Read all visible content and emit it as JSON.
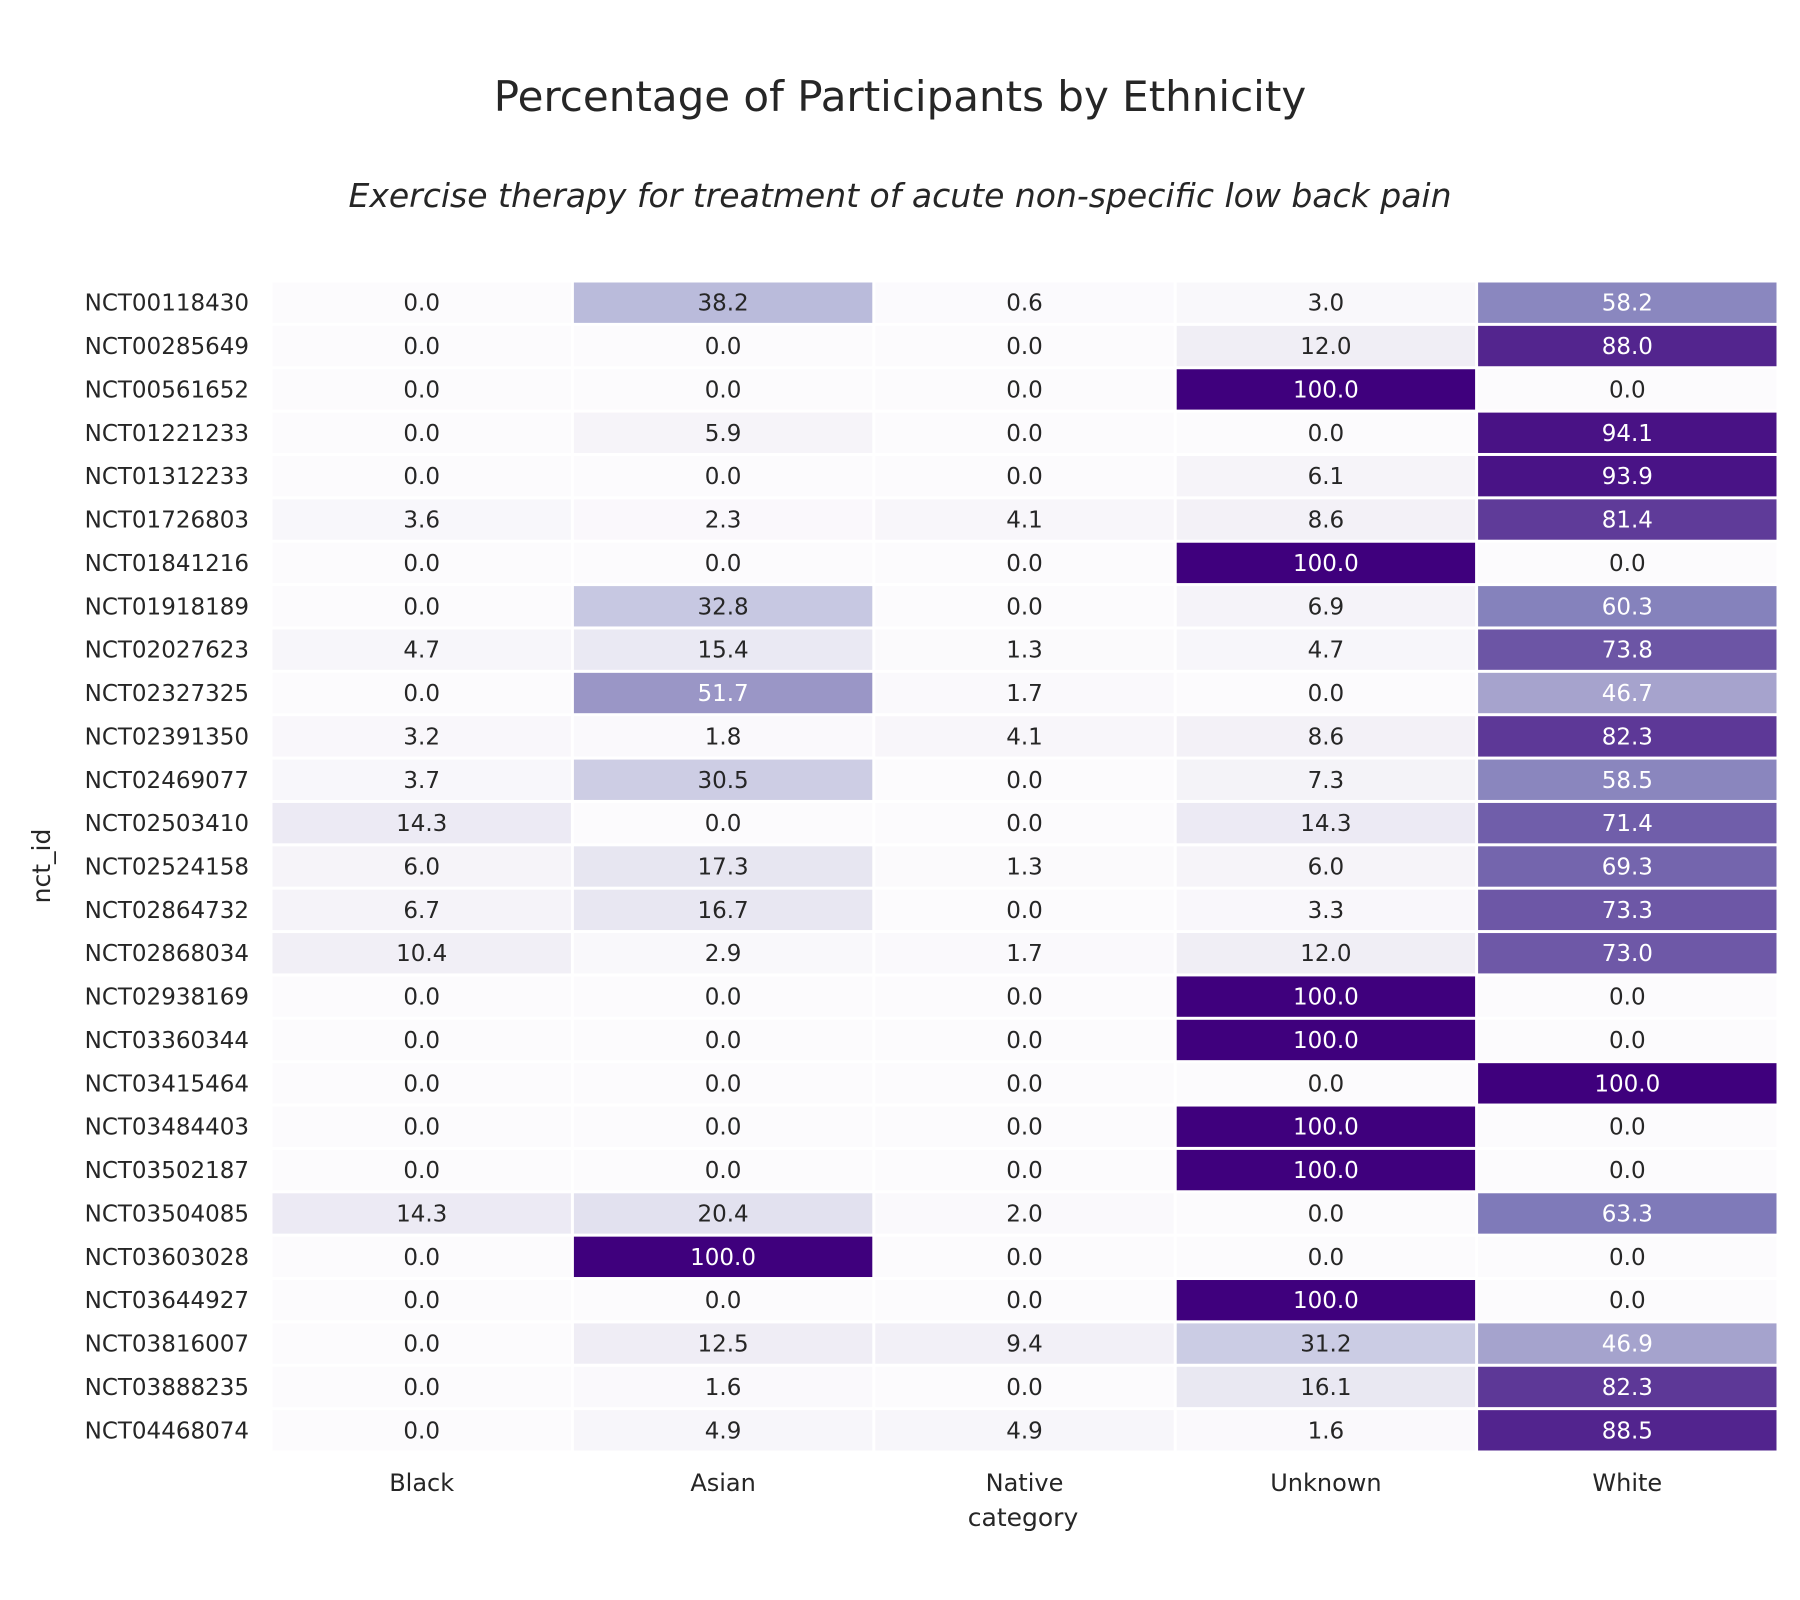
{
  "title": "Percentage of Participants by Ethnicity",
  "subtitle": "Exercise therapy for treatment of acute non-specific low back pain",
  "chart_data": {
    "type": "heatmap",
    "colormap": "Purples",
    "vmin": 0,
    "vmax": 100,
    "xlabel": "category",
    "ylabel": "nct_id",
    "columns": [
      "Black",
      "Asian",
      "Native",
      "Unknown",
      "White"
    ],
    "rows": [
      {
        "id": "NCT00118430",
        "values": [
          0.0,
          38.2,
          0.6,
          3.0,
          58.2
        ]
      },
      {
        "id": "NCT00285649",
        "values": [
          0.0,
          0.0,
          0.0,
          12.0,
          88.0
        ]
      },
      {
        "id": "NCT00561652",
        "values": [
          0.0,
          0.0,
          0.0,
          100.0,
          0.0
        ]
      },
      {
        "id": "NCT01221233",
        "values": [
          0.0,
          5.9,
          0.0,
          0.0,
          94.1
        ]
      },
      {
        "id": "NCT01312233",
        "values": [
          0.0,
          0.0,
          0.0,
          6.1,
          93.9
        ]
      },
      {
        "id": "NCT01726803",
        "values": [
          3.6,
          2.3,
          4.1,
          8.6,
          81.4
        ]
      },
      {
        "id": "NCT01841216",
        "values": [
          0.0,
          0.0,
          0.0,
          100.0,
          0.0
        ]
      },
      {
        "id": "NCT01918189",
        "values": [
          0.0,
          32.8,
          0.0,
          6.9,
          60.3
        ]
      },
      {
        "id": "NCT02027623",
        "values": [
          4.7,
          15.4,
          1.3,
          4.7,
          73.8
        ]
      },
      {
        "id": "NCT02327325",
        "values": [
          0.0,
          51.7,
          1.7,
          0.0,
          46.7
        ]
      },
      {
        "id": "NCT02391350",
        "values": [
          3.2,
          1.8,
          4.1,
          8.6,
          82.3
        ]
      },
      {
        "id": "NCT02469077",
        "values": [
          3.7,
          30.5,
          0.0,
          7.3,
          58.5
        ]
      },
      {
        "id": "NCT02503410",
        "values": [
          14.3,
          0.0,
          0.0,
          14.3,
          71.4
        ]
      },
      {
        "id": "NCT02524158",
        "values": [
          6.0,
          17.3,
          1.3,
          6.0,
          69.3
        ]
      },
      {
        "id": "NCT02864732",
        "values": [
          6.7,
          16.7,
          0.0,
          3.3,
          73.3
        ]
      },
      {
        "id": "NCT02868034",
        "values": [
          10.4,
          2.9,
          1.7,
          12.0,
          73.0
        ]
      },
      {
        "id": "NCT02938169",
        "values": [
          0.0,
          0.0,
          0.0,
          100.0,
          0.0
        ]
      },
      {
        "id": "NCT03360344",
        "values": [
          0.0,
          0.0,
          0.0,
          100.0,
          0.0
        ]
      },
      {
        "id": "NCT03415464",
        "values": [
          0.0,
          0.0,
          0.0,
          0.0,
          100.0
        ]
      },
      {
        "id": "NCT03484403",
        "values": [
          0.0,
          0.0,
          0.0,
          100.0,
          0.0
        ]
      },
      {
        "id": "NCT03502187",
        "values": [
          0.0,
          0.0,
          0.0,
          100.0,
          0.0
        ]
      },
      {
        "id": "NCT03504085",
        "values": [
          14.3,
          20.4,
          2.0,
          0.0,
          63.3
        ]
      },
      {
        "id": "NCT03603028",
        "values": [
          0.0,
          100.0,
          0.0,
          0.0,
          0.0
        ]
      },
      {
        "id": "NCT03644927",
        "values": [
          0.0,
          0.0,
          0.0,
          100.0,
          0.0
        ]
      },
      {
        "id": "NCT03816007",
        "values": [
          0.0,
          12.5,
          9.4,
          31.2,
          46.9
        ]
      },
      {
        "id": "NCT03888235",
        "values": [
          0.0,
          1.6,
          0.0,
          16.1,
          82.3
        ]
      },
      {
        "id": "NCT04468074",
        "values": [
          0.0,
          4.9,
          4.9,
          1.6,
          88.5
        ]
      }
    ]
  }
}
